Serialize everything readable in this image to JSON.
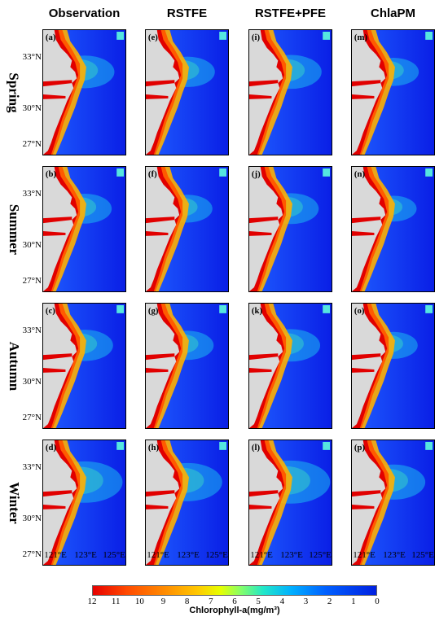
{
  "columns": [
    "Observation",
    "RSTFE",
    "RSTFE+PFE",
    "ChlaPM"
  ],
  "rows": [
    "Spring",
    "Summer",
    "Autumn",
    "Winter"
  ],
  "panel_labels": [
    [
      "(a)",
      "(e)",
      "(i)",
      "(m)"
    ],
    [
      "(b)",
      "(f)",
      "(j)",
      "(n)"
    ],
    [
      "(c)",
      "(g)",
      "(k)",
      "(o)"
    ],
    [
      "(d)",
      "(h)",
      "(l)",
      "(p)"
    ]
  ],
  "lat_ticks": [
    "33°N",
    "30°N",
    "27°N"
  ],
  "lon_ticks": [
    "121°E",
    "123°E",
    "125°E"
  ],
  "colorbar": {
    "title": "Chlorophyll-a(mg/m³)",
    "ticks": [
      "12",
      "11",
      "10",
      "9",
      "8",
      "7",
      "6",
      "5",
      "4",
      "3",
      "2",
      "1",
      "0"
    ],
    "colors": {
      "high": "#e60000",
      "mid": "#ffc800",
      "low": "#0020e0"
    }
  },
  "colors": {
    "land": "#d9d9d9",
    "ocean": "#0a2ff0",
    "coastal_high": "#e10000"
  }
}
